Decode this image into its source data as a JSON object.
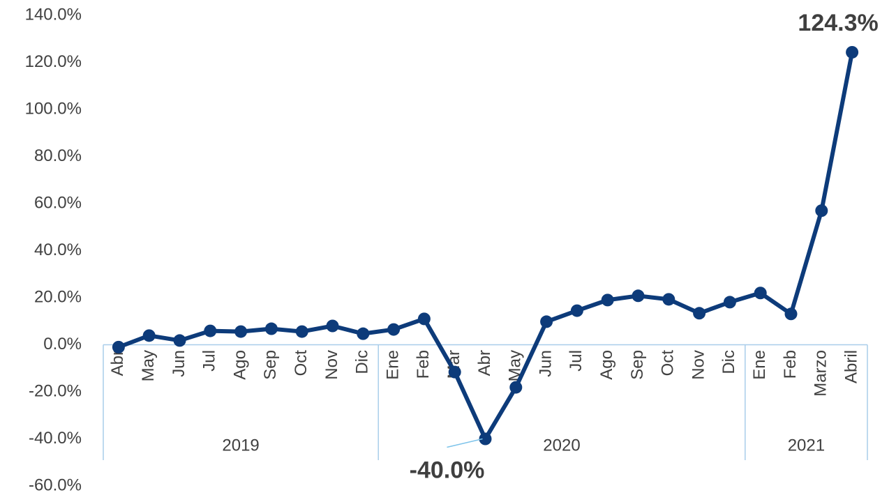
{
  "chart_data": {
    "type": "line",
    "categories": [
      "Abr",
      "May",
      "Jun",
      "Jul",
      "Ago",
      "Sep",
      "Oct",
      "Nov",
      "Dic",
      "Ene",
      "Feb",
      "Mar",
      "Abr",
      "May",
      "Jun",
      "Jul",
      "Ago",
      "Sep",
      "Oct",
      "Nov",
      "Dic",
      "Ene",
      "Feb",
      "Marzo",
      "Abril"
    ],
    "category_groups": [
      {
        "label": "2019",
        "size": 9
      },
      {
        "label": "2020",
        "size": 12
      },
      {
        "label": "2021",
        "size": 4
      }
    ],
    "series": [
      {
        "color": "#0d3b7a",
        "values": [
          -1.0,
          3.9,
          1.8,
          5.9,
          5.6,
          6.8,
          5.6,
          8.0,
          4.7,
          6.5,
          11.0,
          -11.6,
          -40.0,
          -18.1,
          9.8,
          14.5,
          19.0,
          20.8,
          19.3,
          13.4,
          18.1,
          22.0,
          13.1,
          57.0,
          124.3
        ],
        "value_labels": [
          null,
          null,
          null,
          null,
          null,
          null,
          null,
          null,
          null,
          null,
          null,
          null,
          "-40.0%",
          null,
          null,
          null,
          null,
          null,
          null,
          null,
          null,
          null,
          null,
          null,
          "124.3%"
        ]
      }
    ],
    "ylim": [
      -60,
      140
    ],
    "yticks": [
      {
        "value": -60,
        "label": "-60.0%"
      },
      {
        "value": -40,
        "label": "-40.0%"
      },
      {
        "value": -20,
        "label": "-20.0%"
      },
      {
        "value": 0,
        "label": "0.0%"
      },
      {
        "value": 20,
        "label": "20.0%"
      },
      {
        "value": 40,
        "label": "40.0%"
      },
      {
        "value": 60,
        "label": "60.0%"
      },
      {
        "value": 80,
        "label": "80.0%"
      },
      {
        "value": 100,
        "label": "100.0%"
      },
      {
        "value": 120,
        "label": "120.0%"
      },
      {
        "value": 140,
        "label": "140.0%"
      }
    ],
    "grid": false
  }
}
